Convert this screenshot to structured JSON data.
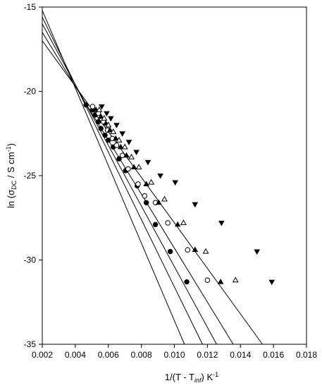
{
  "chart_data": {
    "type": "scatter",
    "xlabel": {
      "main": "1/(T - T",
      "sub": "inf",
      "tail": ") K",
      "sup": "-1"
    },
    "ylabel": {
      "main": "ln (σ",
      "sub": "DC",
      "tail": " / S cm",
      "sup": "-1",
      "close": ")"
    },
    "xlim": [
      0.002,
      0.018
    ],
    "ylim": [
      -35,
      -15
    ],
    "xticks": [
      0.002,
      0.004,
      0.006,
      0.008,
      0.01,
      0.012,
      0.014,
      0.016,
      0.018
    ],
    "yticks": [
      -15,
      -20,
      -25,
      -30,
      -35
    ],
    "xtick_labels": [
      "0.002",
      "0.004",
      "0.006",
      "0.008",
      "0.010",
      "0.012",
      "0.014",
      "0.016",
      "0.018"
    ],
    "ytick_labels": [
      "-15",
      "-20",
      "-25",
      "-30",
      "-35"
    ],
    "grid": false,
    "series": [
      {
        "marker": "filled-circle",
        "fit": {
          "slope": -2300,
          "intercept": -10.6
        },
        "x": [
          0.00465,
          0.00505,
          0.0052,
          0.0054,
          0.00555,
          0.0058,
          0.006,
          0.0063,
          0.00665,
          0.00705,
          0.00775,
          0.0083,
          0.00885,
          0.00975,
          0.01075
        ],
        "y": [
          -20.8,
          -21.1,
          -21.4,
          -21.8,
          -22.2,
          -22.6,
          -22.9,
          -23.3,
          -24.0,
          -24.7,
          -25.6,
          -26.6,
          -27.9,
          -29.5,
          -31.3
        ]
      },
      {
        "marker": "open-circle",
        "fit": {
          "slope": -2000,
          "intercept": -11.6
        },
        "x": [
          0.00505,
          0.0054,
          0.0057,
          0.00595,
          0.00625,
          0.0065,
          0.00685,
          0.0072,
          0.0078,
          0.0082,
          0.00885,
          0.0096,
          0.0108,
          0.012
        ],
        "y": [
          -20.9,
          -21.3,
          -21.8,
          -22.3,
          -22.8,
          -23.2,
          -23.8,
          -24.6,
          -25.5,
          -26.2,
          -26.6,
          -27.8,
          -29.4,
          -31.2
        ]
      },
      {
        "marker": "filled-triangle-up",
        "fit": {
          "slope": -1800,
          "intercept": -12.4
        },
        "x": [
          0.00525,
          0.00555,
          0.00585,
          0.0061,
          0.00645,
          0.00675,
          0.0071,
          0.00755,
          0.0083,
          0.00905,
          0.0102,
          0.01125,
          0.0128
        ],
        "y": [
          -21.1,
          -21.5,
          -21.9,
          -22.3,
          -22.8,
          -23.3,
          -23.8,
          -24.5,
          -25.5,
          -26.6,
          -27.9,
          -29.4,
          -31.3
        ]
      },
      {
        "marker": "open-triangle-up",
        "fit": {
          "slope": -1600,
          "intercept": -13.3
        },
        "x": [
          0.00545,
          0.00575,
          0.006,
          0.0063,
          0.00665,
          0.007,
          0.0074,
          0.00785,
          0.0086,
          0.0094,
          0.01055,
          0.0119,
          0.0137
        ],
        "y": [
          -21.1,
          -21.6,
          -22.0,
          -22.4,
          -22.9,
          -23.3,
          -23.9,
          -24.5,
          -25.4,
          -26.4,
          -27.8,
          -29.5,
          -31.2
        ]
      },
      {
        "marker": "filled-triangle-down",
        "fit": {
          "slope": -1350,
          "intercept": -14.3
        },
        "x": [
          0.0056,
          0.0059,
          0.00615,
          0.0065,
          0.00685,
          0.00725,
          0.0077,
          0.0084,
          0.00915,
          0.01005,
          0.01125,
          0.01285,
          0.015,
          0.0159
        ],
        "y": [
          -20.9,
          -21.3,
          -21.6,
          -22.0,
          -22.5,
          -23.0,
          -23.6,
          -24.2,
          -25.0,
          -25.4,
          -26.7,
          -27.8,
          -29.5,
          -31.3
        ]
      }
    ]
  }
}
